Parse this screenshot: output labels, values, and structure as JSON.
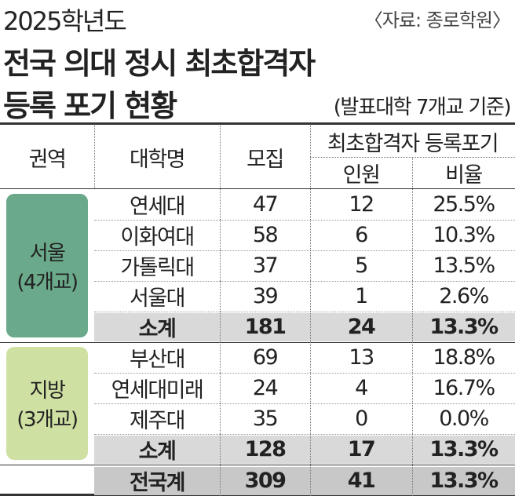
{
  "header": {
    "year": "2025학년도",
    "source": "〈자료: 종로학원〉",
    "title_lines": [
      "전국 의대 정시 최초합격자",
      "등록 포기 현황"
    ],
    "subtitle": "(발표대학 7개교 기준)"
  },
  "table": {
    "columns": {
      "region": "권역",
      "university": "대학명",
      "recruit": "모집",
      "group": "최초합격자 등록포기",
      "count": "인원",
      "ratio": "비율"
    },
    "groups": [
      {
        "region": "서울",
        "region_note": "(4개교)",
        "rows": [
          [
            "연세대",
            "47",
            "12",
            "25.5%"
          ],
          [
            "이화여대",
            "58",
            "6",
            "10.3%"
          ],
          [
            "가톨릭대",
            "37",
            "5",
            "13.5%"
          ],
          [
            "서울대",
            "39",
            "1",
            "2.6%"
          ]
        ],
        "subtotal": [
          "소계",
          "181",
          "24",
          "13.3%"
        ]
      },
      {
        "region": "지방",
        "region_note": "(3개교)",
        "rows": [
          [
            "부산대",
            "69",
            "13",
            "18.8%"
          ],
          [
            "연세대미래",
            "24",
            "4",
            "16.7%"
          ],
          [
            "제주대",
            "35",
            "0",
            "0.0%"
          ]
        ],
        "subtotal": [
          "소계",
          "128",
          "17",
          "13.3%"
        ]
      }
    ],
    "total": [
      "전국계",
      "309",
      "41",
      "13.3%"
    ]
  }
}
